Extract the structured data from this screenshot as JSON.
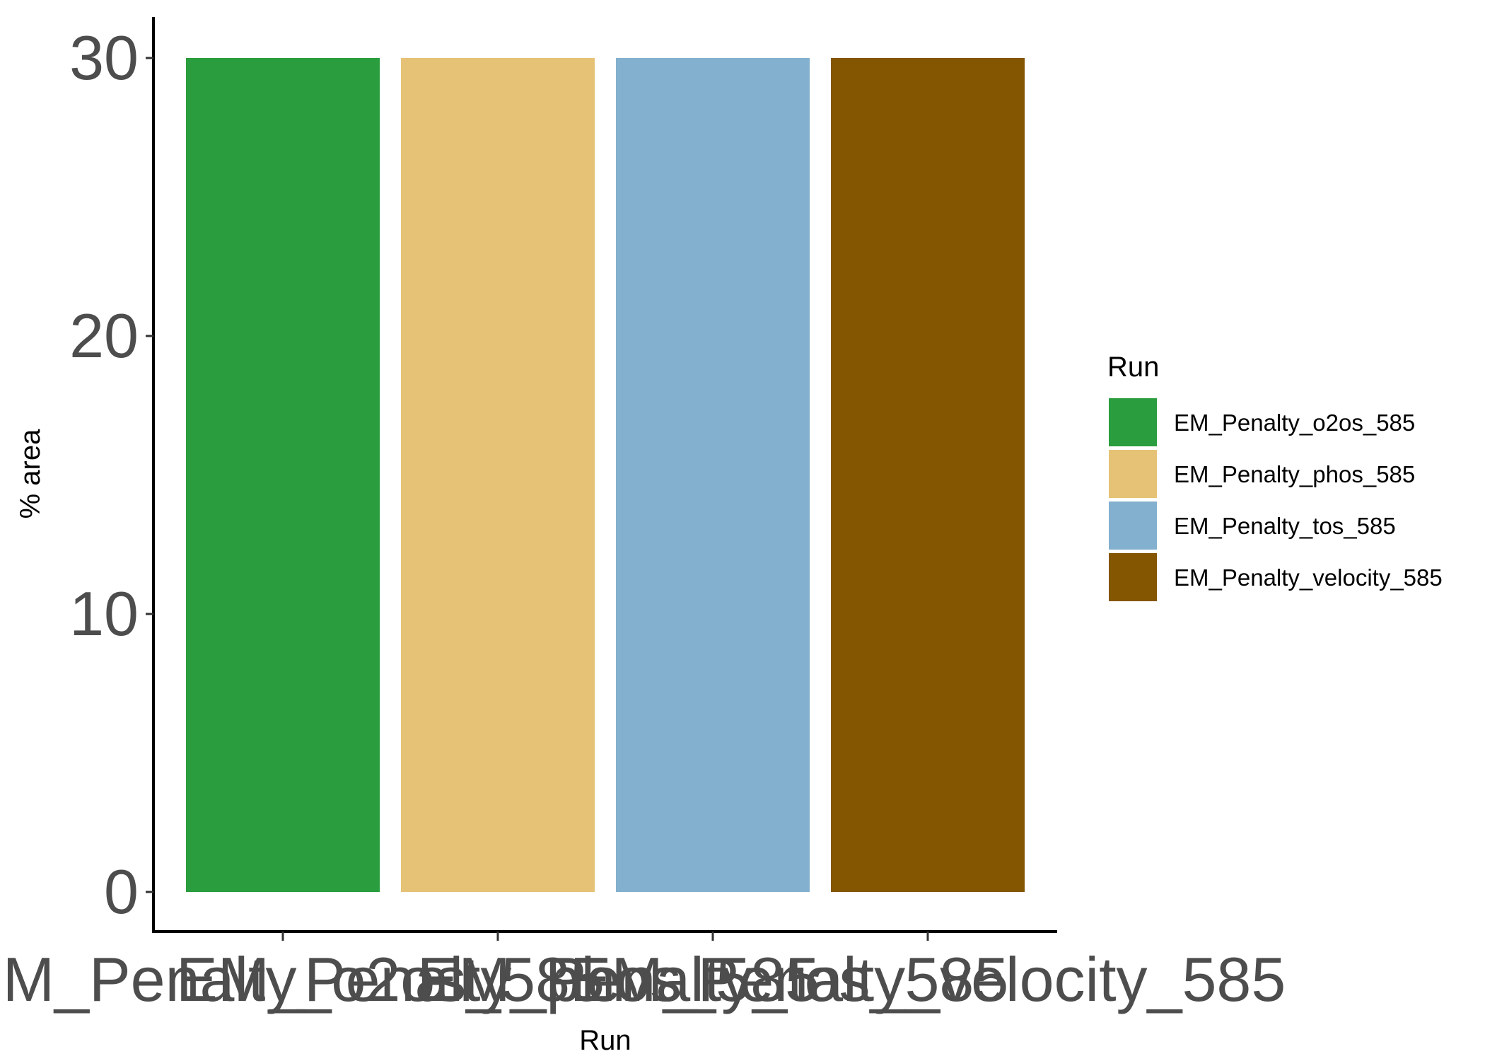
{
  "chart_data": {
    "type": "bar",
    "categories": [
      "EM_Penalty_o2os_585",
      "EM_Penalty_phos_585",
      "EM_Penalty_tos_585",
      "EM_Penalty_velocity_585"
    ],
    "values": [
      30,
      30,
      30,
      30
    ],
    "colors": [
      "#2a9d3e",
      "#e5c276",
      "#83b0ce",
      "#845602"
    ],
    "xlabel": "Run",
    "ylabel": "% area",
    "ylim": [
      0,
      30
    ],
    "yticks": [
      "0",
      "10",
      "20",
      "30"
    ],
    "legend": {
      "title": "Run",
      "position": "right",
      "entries": [
        "EM_Penalty_o2os_585",
        "EM_Penalty_phos_585",
        "EM_Penalty_tos_585",
        "EM_Penalty_velocity_585"
      ]
    },
    "grid": false
  }
}
